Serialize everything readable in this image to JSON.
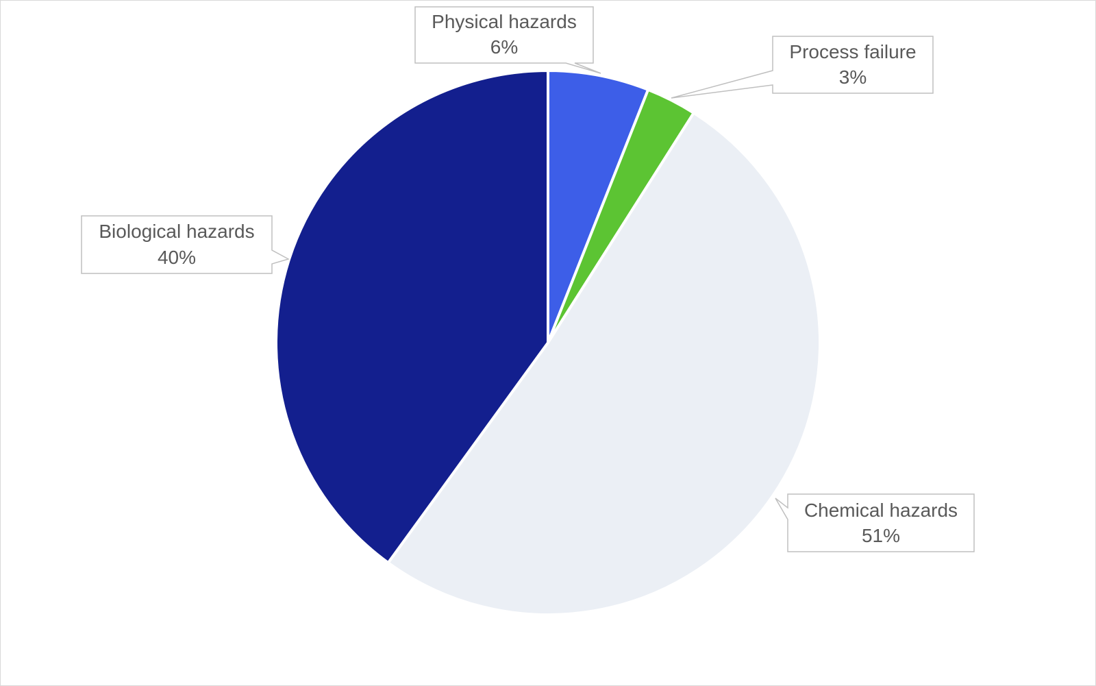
{
  "chart_data": {
    "type": "pie",
    "title": "",
    "start_angle_deg": 0,
    "direction": "clockwise",
    "slices": [
      {
        "label": "Physical hazards",
        "value": 6,
        "value_label": "6%",
        "color": "#3d5ee8"
      },
      {
        "label": "Process failure",
        "value": 3,
        "value_label": "3%",
        "color": "#5cc433"
      },
      {
        "label": "Chemical hazards",
        "value": 51,
        "value_label": "51%",
        "color": "#ebeff5"
      },
      {
        "label": "Biological hazards",
        "value": 40,
        "value_label": "40%",
        "color": "#131f8e"
      }
    ],
    "legend": "none",
    "data_labels": "callouts"
  }
}
